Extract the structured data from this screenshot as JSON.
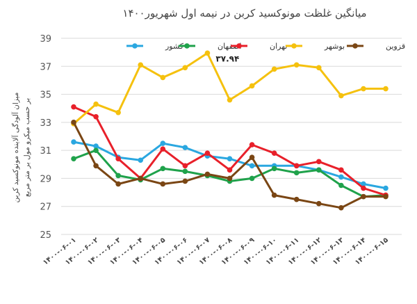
{
  "chart_data": {
    "type": "line",
    "title": "میانگین غلظت مونوکسید کربن در نیمه اول شهریور۱۴۰۰",
    "ylabel_line1": "میزان آلودگی آلاینده مونوکسید کربن",
    "ylabel_line2": "بر حسب میکرو مول بر متر مربع",
    "ylim": [
      25,
      39
    ],
    "yticks": [
      25,
      27,
      29,
      31,
      33,
      35,
      37,
      39
    ],
    "ytick_labels": [
      "25",
      "27",
      "29",
      "31",
      "33",
      "35",
      "37",
      "39"
    ],
    "categories": [
      "۱۴۰۰-۰۶-۰۱",
      "۱۴۰۰-۰۶-۰۲",
      "۱۴۰۰-۰۶-۰۳",
      "۱۴۰۰-۰۶-۰۴",
      "۱۴۰۰-۰۶-۰۵",
      "۱۴۰۰-۰۶-۰۶",
      "۱۴۰۰-۰۶-۰۷",
      "۱۴۰۰-۰۶-۰۸",
      "۱۴۰۰-۰۶-۰۹",
      "۱۴۰۰-۰۶-۱۰",
      "۱۴۰۰-۰۶-۱۱",
      "۱۴۰۰-۰۶-۱۲",
      "۱۴۰۰-۰۶-۱۳",
      "۱۴۰۰-۰۶-۱۴",
      "۱۴۰۰-۰۶-۱۵"
    ],
    "grid": true,
    "legend_position": "top",
    "series": [
      {
        "name": "کشور",
        "color": "#2aa7e0",
        "values": [
          31.6,
          31.3,
          30.5,
          30.3,
          31.5,
          31.2,
          30.6,
          30.4,
          29.9,
          29.9,
          29.9,
          29.6,
          29.1,
          28.6,
          28.3
        ]
      },
      {
        "name": "اصفهان",
        "color": "#1fa24b",
        "values": [
          30.4,
          31.0,
          29.2,
          28.9,
          29.7,
          29.5,
          29.2,
          28.8,
          29.0,
          29.7,
          29.4,
          29.6,
          28.5,
          27.7,
          27.8
        ]
      },
      {
        "name": "تهران",
        "color": "#e8202a",
        "values": [
          34.1,
          33.4,
          30.4,
          29.0,
          31.1,
          29.9,
          30.8,
          29.6,
          31.4,
          30.8,
          29.9,
          30.2,
          29.6,
          28.3,
          27.8
        ]
      },
      {
        "name": "بوشهر",
        "color": "#f5c10e",
        "values": [
          32.9,
          34.3,
          33.7,
          37.1,
          36.2,
          36.9,
          37.94,
          34.6,
          35.6,
          36.8,
          37.1,
          36.9,
          34.9,
          35.4,
          35.4
        ]
      },
      {
        "name": "قزوین",
        "color": "#7a4614",
        "values": [
          33.0,
          29.9,
          28.6,
          29.0,
          28.6,
          28.8,
          29.3,
          29.0,
          30.5,
          27.8,
          27.5,
          27.2,
          26.9,
          27.7,
          27.7
        ]
      }
    ],
    "annotation": {
      "text": "۳۷.۹۴",
      "series_index": 3,
      "point_index": 6
    }
  }
}
